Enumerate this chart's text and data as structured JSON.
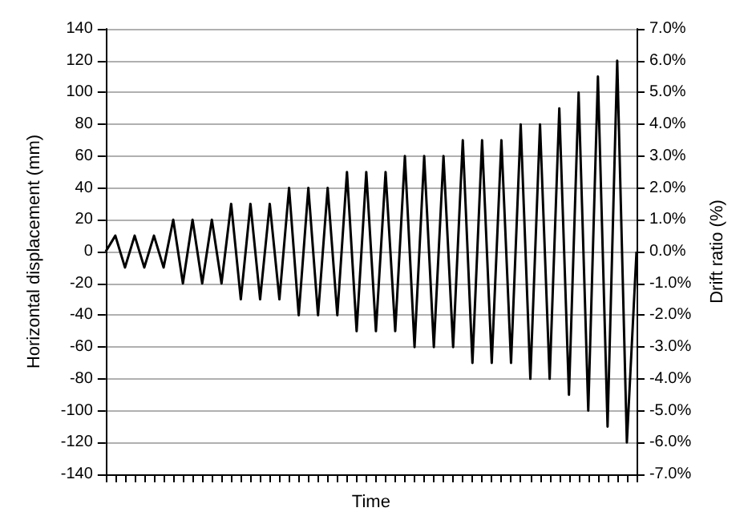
{
  "chart_data": {
    "type": "line",
    "xlabel": "Time",
    "ylabel": "Horizontal displacement (mm)",
    "y2label": "Drift ratio (%)",
    "categories": [
      null,
      null,
      null,
      null,
      null,
      null,
      null,
      null,
      null,
      null,
      null,
      null,
      null,
      null,
      null,
      null,
      null,
      null,
      null,
      null,
      null,
      null,
      null,
      null,
      null,
      null,
      null,
      null,
      null,
      null,
      null,
      null,
      null,
      null,
      null,
      null,
      null,
      null,
      null,
      null,
      null,
      null,
      null,
      null,
      null,
      null,
      null,
      null,
      null,
      null,
      null,
      null,
      null,
      null,
      null,
      null
    ],
    "ylim": [
      -140,
      140
    ],
    "yticks": [
      -140,
      -120,
      -100,
      -80,
      -60,
      -40,
      -20,
      0,
      20,
      40,
      60,
      80,
      100,
      120,
      140
    ],
    "y2lim": [
      -7,
      7
    ],
    "y2ticks": [
      {
        "value": -7,
        "label": "-7.0%"
      },
      {
        "value": -6,
        "label": "-6.0%"
      },
      {
        "value": -5,
        "label": "-5.0%"
      },
      {
        "value": -4,
        "label": "-4.0%"
      },
      {
        "value": -3,
        "label": "-3.0%"
      },
      {
        "value": -2,
        "label": "-2.0%"
      },
      {
        "value": -1,
        "label": "-1.0%"
      },
      {
        "value": 0,
        "label": "0.0%"
      },
      {
        "value": 1,
        "label": "1.0%"
      },
      {
        "value": 2,
        "label": "2.0%"
      },
      {
        "value": 3,
        "label": "3.0%"
      },
      {
        "value": 4,
        "label": "4.0%"
      },
      {
        "value": 5,
        "label": "5.0%"
      },
      {
        "value": 6,
        "label": "6.0%"
      },
      {
        "value": 7,
        "label": "7.0%"
      }
    ],
    "tick_labels": "y",
    "grid": "y",
    "line_style": "solid",
    "series": [
      {
        "color": "#000000",
        "values": [
          0,
          10,
          -10,
          10,
          -10,
          10,
          -10,
          20,
          -20,
          20,
          -20,
          20,
          -20,
          30,
          -30,
          30,
          -30,
          30,
          -30,
          40,
          -40,
          40,
          -40,
          40,
          -40,
          50,
          -50,
          50,
          -50,
          50,
          -50,
          60,
          -60,
          60,
          -60,
          60,
          -60,
          70,
          -70,
          70,
          -70,
          70,
          -70,
          80,
          -80,
          80,
          -80,
          90,
          -90,
          100,
          -100,
          110,
          -110,
          120,
          -120,
          0
        ]
      }
    ]
  }
}
